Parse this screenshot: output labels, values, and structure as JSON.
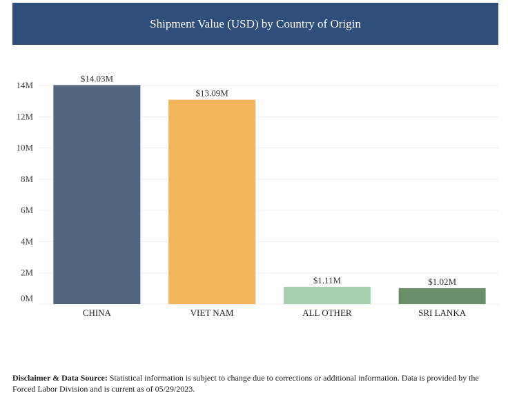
{
  "chart_data": {
    "type": "bar",
    "title": "Shipment Value (USD) by Country of Origin",
    "categories": [
      "CHINA",
      "VIET NAM",
      "ALL OTHER",
      "SRI LANKA"
    ],
    "values": [
      14.03,
      13.09,
      1.11,
      1.02
    ],
    "data_labels": [
      "$14.03M",
      "$13.09M",
      "$1.11M",
      "$1.02M"
    ],
    "colors": [
      "#536680",
      "#f2b559",
      "#a6cfad",
      "#698e68"
    ],
    "unit": "M USD",
    "ylim": [
      0,
      14
    ],
    "yticks": [
      0,
      2,
      4,
      6,
      8,
      10,
      12,
      14
    ],
    "ytick_labels": [
      "0M",
      "2M",
      "4M",
      "6M",
      "8M",
      "10M",
      "12M",
      "14M"
    ],
    "grid": true,
    "xlabel": "",
    "ylabel": ""
  },
  "footer": {
    "disclaimer_label": "Disclaimer & Data Source:",
    "disclaimer_text": " Statistical information is subject to change due to corrections or additional information. Data is provided by the Forced Labor Division and is current as of 05/29/2023."
  },
  "colors": {
    "header_bg": "#2f4e7a"
  }
}
